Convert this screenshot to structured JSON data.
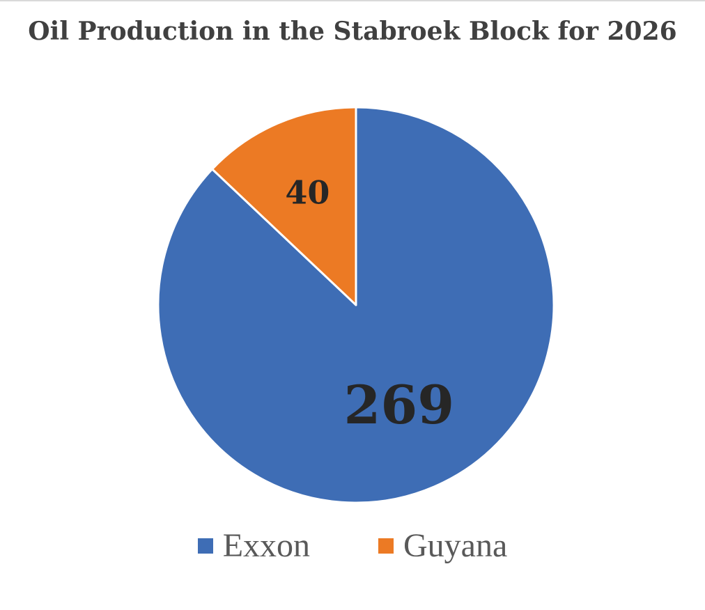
{
  "chart_data": {
    "type": "pie",
    "title": "Oil Production in the Stabroek Block for 2026",
    "categories": [
      "Exxon",
      "Guyana"
    ],
    "values": [
      269,
      40
    ],
    "data_labels": [
      "269",
      "40"
    ],
    "colors": [
      "#3E6DB5",
      "#EC7A24"
    ],
    "start_angle": "12 o'clock, clockwise",
    "legend_position": "bottom"
  }
}
